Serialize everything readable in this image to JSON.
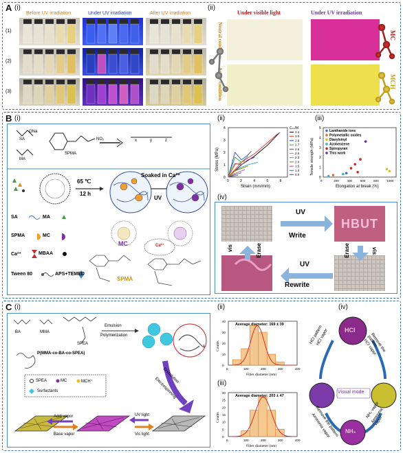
{
  "A": {
    "letter": "A",
    "i": {
      "label": "(i)",
      "headers": [
        "Before UV irradiation",
        "Under UV irradiation",
        "After UV irradiation"
      ],
      "rows": [
        "(1)",
        "(2)",
        "(3)"
      ]
    },
    "ii": {
      "label": "(ii)",
      "header_visible": "Under visible light",
      "header_uv": "Under UV irradiation",
      "row_neutral": "Neutral condition",
      "row_acidic": "Acidic condition",
      "mc": "MC",
      "mch": "MCH"
    }
  },
  "B": {
    "letter": "B",
    "i": {
      "label": "(i)",
      "chem_sa": "SA",
      "chem_ma": "MA",
      "chem_spma": "SPMA",
      "chem_ona": "ONa",
      "chem_no2": "NO₂",
      "poly_x": "x",
      "poly_y": "y",
      "poly_z": "z",
      "temp": "65 ℃",
      "time": "12 h",
      "soaked": "Soaked in Ca²⁺",
      "uv": "UV",
      "legend": [
        "SA",
        "MA",
        "SPMA",
        "MC",
        "Ca²⁺",
        "MBAA",
        "Tween 80",
        "APS+TEMED"
      ],
      "label_mc": "MC",
      "label_spma": "SPMA",
      "label_ca": "Ca²⁺"
    },
    "ii": {
      "label": "(ii)",
      "ylabel": "Stress (MPa)",
      "xlabel": "Strain (mm/mm)",
      "legend_title": "Cₛₚ/M",
      "yticks": [
        "0",
        "1",
        "2",
        "3",
        "4"
      ],
      "xticks": [
        "0",
        "2",
        "4",
        "6",
        "8"
      ]
    },
    "iii": {
      "label": "(iii)",
      "ylabel": "Tensile strength (MPa)",
      "xlabel": "Elongation at break (%)",
      "yticks": [
        "0",
        "1",
        "2",
        "3",
        "4",
        "5"
      ],
      "xticks": [
        "0",
        "200",
        "400",
        "600",
        "800",
        "1000"
      ]
    },
    "iv": {
      "label": "(iv)",
      "write": "Write",
      "uv1": "UV",
      "erase_right": "Erase",
      "vis_right": "vis",
      "rewrite": "Rewrite",
      "uv2": "UV",
      "erase_left": "Erase",
      "vis_left": "vis",
      "hbut": "HBUT"
    }
  },
  "C": {
    "letter": "C",
    "i": {
      "label": "(i)",
      "ba": "BA",
      "mma": "MMA",
      "spea": "SPEA",
      "emulsion": "Emulsion",
      "polymerization": "Polymerization",
      "polymer": "P(MMA-co-BA-co-SPEA)",
      "leg_spea": "SPEA",
      "leg_mc": "MC",
      "leg_mch": "MCH⁺",
      "surfactants": "Surfactants",
      "dissolution": "Dissolution",
      "electrospinning": "Electrospinning",
      "acid": "Acid vapor",
      "base": "Base vapor",
      "uvlight": "UV light",
      "vislight": "Vis light"
    },
    "ii": {
      "label": "(ii)",
      "title": "Average diameter: 169 ± 39",
      "ylabel": "Counts",
      "xlabel": "Fiber diameter (nm)",
      "xticks": [
        "0",
        "100",
        "200",
        "300",
        "400"
      ],
      "yticks": [
        "0",
        "10",
        "20",
        "30",
        "40"
      ]
    },
    "iii": {
      "label": "(iii)",
      "title": "Average diameter: 203 ± 47",
      "ylabel": "Counts",
      "xlabel": "Fiber diameter (nm)",
      "xticks": [
        "0",
        "100",
        "200",
        "300",
        "400"
      ],
      "yticks": [
        "0",
        "5",
        "10",
        "15",
        "20",
        "25",
        "30"
      ]
    },
    "iv": {
      "label": "(iv)",
      "center": "Visual mode",
      "hcl": "HCl",
      "nh3": "NH₃",
      "arrow_hcl_pattern": "HCl pattern",
      "arrow_hcl_vapor": "HCl vapor",
      "arrow_remove1": "Remove the pattern",
      "arrow_hcl_vapor2": "HCl vapor",
      "arrow_nh3_vapor": "NH₃ vapor",
      "arrow_ammonia1": "Ammonia vapor",
      "arrow_remove2": "Remove the pattern",
      "arrow_ammonia2": "Ammonia vapor"
    }
  },
  "chart_data": [
    {
      "type": "line",
      "ylabel": "Stress (MPa)",
      "xlabel": "Strain (mm/mm)",
      "xlim": [
        0,
        9
      ],
      "ylim": [
        0,
        4
      ],
      "legend_title": "Cₛₚ/M",
      "series": [
        {
          "name": "3.2",
          "color": "#000000",
          "x": [
            0,
            2,
            4,
            6,
            7.8
          ],
          "y": [
            0,
            1.0,
            1.7,
            2.6,
            3.6
          ]
        },
        {
          "name": "3.0",
          "color": "#e03030",
          "x": [
            0,
            2,
            4,
            6,
            7.5
          ],
          "y": [
            0,
            1.2,
            1.9,
            2.8,
            3.5
          ]
        },
        {
          "name": "2.8",
          "color": "#2040d0",
          "x": [
            0,
            1,
            2,
            3,
            3.5
          ],
          "y": [
            0,
            2.0,
            1.4,
            1.8,
            2.1
          ]
        },
        {
          "name": "2.7",
          "color": "#20a040",
          "x": [
            0,
            1,
            2,
            3
          ],
          "y": [
            0,
            1.6,
            1.2,
            1.7
          ]
        },
        {
          "name": "2.6",
          "color": "#a020a0",
          "x": [
            0,
            1,
            2,
            3,
            4
          ],
          "y": [
            0,
            1.1,
            1.0,
            1.4,
            1.6
          ]
        },
        {
          "name": "2.5",
          "color": "#e08020",
          "x": [
            0,
            1,
            2,
            2.5
          ],
          "y": [
            0,
            1.0,
            1.2,
            1.3
          ]
        },
        {
          "name": "2.3",
          "color": "#20a0c0",
          "x": [
            0,
            1,
            2,
            3,
            4.5
          ],
          "y": [
            0,
            0.5,
            0.8,
            1.0,
            1.2
          ]
        },
        {
          "name": "2.0",
          "color": "#808000",
          "x": [
            0,
            1,
            2,
            3
          ],
          "y": [
            0,
            0.5,
            0.7,
            0.9
          ]
        },
        {
          "name": "1.5",
          "color": "#c04080",
          "x": [
            0,
            1,
            2,
            2.5
          ],
          "y": [
            0,
            0.3,
            0.5,
            0.6
          ]
        },
        {
          "name": "1.0",
          "color": "#4060a0",
          "x": [
            0,
            1,
            2
          ],
          "y": [
            0,
            0.2,
            0.35
          ]
        },
        {
          "name": "0.0",
          "color": "#606060",
          "x": [
            0,
            1,
            1.5
          ],
          "y": [
            0,
            0.1,
            0.15
          ]
        }
      ]
    },
    {
      "type": "scatter",
      "ylabel": "Tensile strength (MPa)",
      "xlabel": "Elongation at break (%)",
      "xlim": [
        0,
        1100
      ],
      "ylim": [
        0,
        5
      ],
      "series": [
        {
          "name": "Lanthanide ions",
          "color": "#3a6fc8",
          "x": [
            350
          ],
          "y": [
            0.4
          ]
        },
        {
          "name": "Polymetallic oxides",
          "color": "#e07020",
          "x": [
            150
          ],
          "y": [
            0.2
          ]
        },
        {
          "name": "Diarylvinyl",
          "color": "#e0c020",
          "x": [
            960,
            1000
          ],
          "y": [
            0.8,
            0.6
          ]
        },
        {
          "name": "Azobenzene",
          "color": "#40b0d0",
          "x": [
            80,
            300
          ],
          "y": [
            0.1,
            0.3
          ]
        },
        {
          "name": "Spiropyran",
          "color": "#d02020",
          "x": [
            420,
            480,
            520,
            560
          ],
          "y": [
            0.9,
            1.3,
            0.5,
            1.8
          ]
        },
        {
          "name": "This work",
          "color": "#7030a0",
          "x": [
            640
          ],
          "y": [
            3.6
          ]
        }
      ]
    },
    {
      "type": "bar",
      "title": "Average diameter: 169 ± 39",
      "xlabel": "Fiber diameter (nm)",
      "ylabel": "Counts",
      "categories": [
        "50",
        "100",
        "150",
        "200",
        "250",
        "300"
      ],
      "values": [
        5,
        15,
        36,
        30,
        10,
        3
      ],
      "ylim": [
        0,
        40
      ]
    },
    {
      "type": "bar",
      "title": "Average diameter: 203 ± 47",
      "xlabel": "Fiber diameter (nm)",
      "ylabel": "Counts",
      "categories": [
        "100",
        "150",
        "200",
        "250",
        "300"
      ],
      "values": [
        4,
        18,
        27,
        18,
        5
      ],
      "ylim": [
        0,
        30
      ]
    }
  ]
}
